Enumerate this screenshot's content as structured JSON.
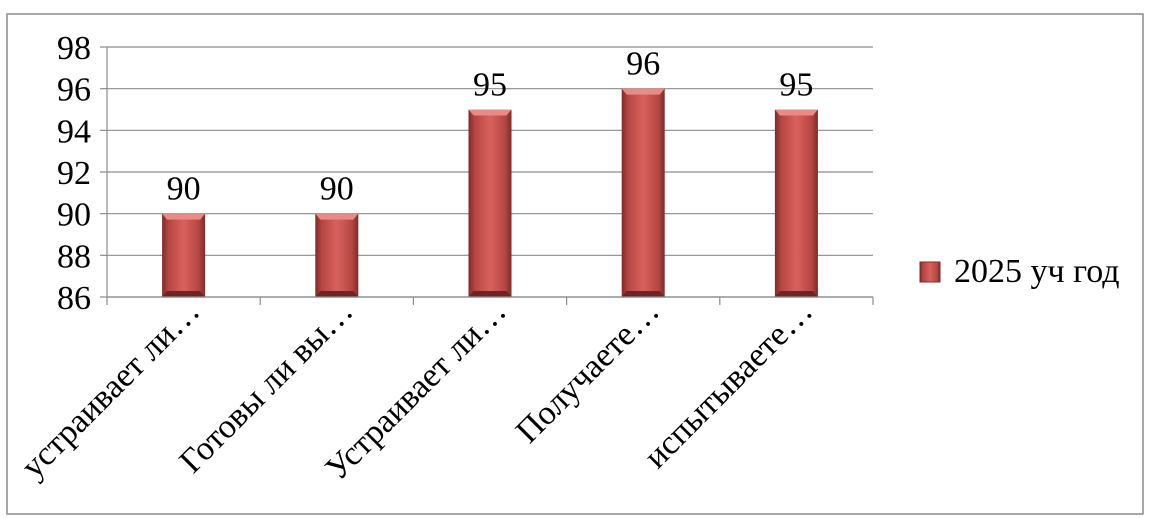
{
  "chart_data": {
    "type": "bar",
    "categories": [
      "устраивает ли…",
      "Готовы ли вы…",
      "Устраивает ли…",
      "Получаете…",
      "испытываете…"
    ],
    "series": [
      {
        "name": "2025 уч год",
        "values": [
          90,
          90,
          95,
          96,
          95
        ]
      }
    ],
    "data_labels": [
      "90",
      "90",
      "95",
      "96",
      "95"
    ],
    "y_ticks": [
      "86",
      "88",
      "90",
      "92",
      "94",
      "96",
      "98"
    ],
    "ylim": [
      86,
      98
    ],
    "grid": true,
    "legend_position": "right",
    "bar_color": "#c0504d"
  }
}
